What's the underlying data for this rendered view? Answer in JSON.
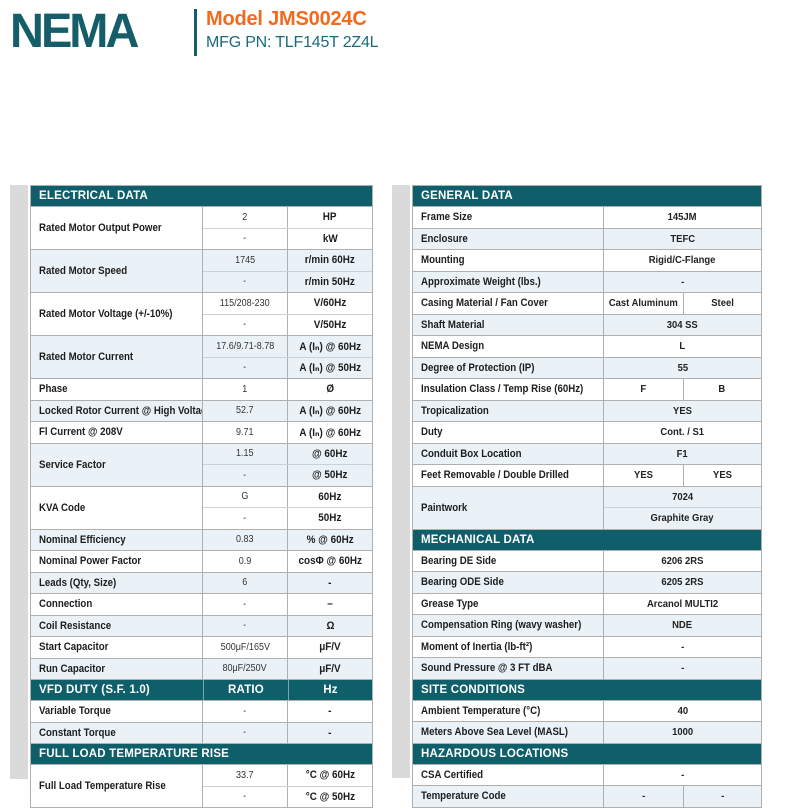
{
  "colors": {
    "teal": "#0E5F6A",
    "brand_teal": "#155E69",
    "orange": "#F26B1D",
    "row_stripe": "#EAF2F7",
    "border": "#AFAFAF",
    "edge_strip": "#DADADA"
  },
  "header": {
    "logo_text": "NEMA",
    "model_label": "Model JMS0024C",
    "mfg_pn": "MFG PN: TLF145T 2Z4L"
  },
  "left_table": {
    "sections": [
      {
        "header": {
          "label": "ELECTRICAL DATA"
        },
        "groups": [
          {
            "label": "Rated Motor Output Power",
            "rows": [
              [
                "2",
                "HP"
              ],
              [
                "-",
                "kW"
              ]
            ]
          },
          {
            "label": "Rated Motor Speed",
            "rows": [
              [
                "1745",
                "r/min 60Hz"
              ],
              [
                "-",
                "r/min 50Hz"
              ]
            ]
          },
          {
            "label": "Rated Motor Voltage (+/-10%)",
            "rows": [
              [
                "115/208-230",
                "V/60Hz"
              ],
              [
                "-",
                "V/50Hz"
              ]
            ]
          },
          {
            "label": "Rated Motor Current",
            "rows": [
              [
                "17.6/9.71-8.78",
                "A (Iₙ) @ 60Hz"
              ],
              [
                "-",
                "A (Iₙ) @ 50Hz"
              ]
            ]
          },
          {
            "label": "Phase",
            "rows": [
              [
                "1",
                "Ø"
              ]
            ]
          },
          {
            "label": "Locked Rotor Current @ High Voltage",
            "rows": [
              [
                "52.7",
                "A (Iₙ) @ 60Hz"
              ]
            ]
          },
          {
            "label": "Fl Current @ 208V",
            "rows": [
              [
                "9.71",
                "A (Iₙ) @ 60Hz"
              ]
            ]
          },
          {
            "label": "Service Factor",
            "rows": [
              [
                "1.15",
                "@ 60Hz"
              ],
              [
                "-",
                "@ 50Hz"
              ]
            ]
          },
          {
            "label": "KVA Code",
            "rows": [
              [
                "G",
                "60Hz"
              ],
              [
                "-",
                "50Hz"
              ]
            ]
          },
          {
            "label": "Nominal Efficiency",
            "rows": [
              [
                "0.83",
                "% @ 60Hz"
              ]
            ]
          },
          {
            "label": "Nominal Power Factor",
            "rows": [
              [
                "0.9",
                "cosΦ @ 60Hz"
              ]
            ]
          },
          {
            "label": "Leads (Qty, Size)",
            "rows": [
              [
                "6",
                "-"
              ]
            ]
          },
          {
            "label": "Connection",
            "rows": [
              [
                "-",
                "–"
              ]
            ]
          },
          {
            "label": "Coil Resistance",
            "rows": [
              [
                "-",
                "Ω"
              ]
            ]
          },
          {
            "label": "Start Capacitor",
            "rows": [
              [
                "500μF/165V",
                "μF/V"
              ]
            ]
          },
          {
            "label": "Run Capacitor",
            "rows": [
              [
                "80μF/250V",
                "μF/V"
              ]
            ]
          }
        ]
      },
      {
        "header": {
          "label": "VFD DUTY (S.F. 1.0)",
          "cols": [
            "RATIO",
            "Hz"
          ]
        },
        "groups": [
          {
            "label": "Variable Torque",
            "rows": [
              [
                "-",
                "-"
              ]
            ]
          },
          {
            "label": "Constant Torque",
            "rows": [
              [
                "-",
                "-"
              ]
            ]
          }
        ]
      },
      {
        "header": {
          "label": "FULL LOAD TEMPERATURE RISE"
        },
        "groups": [
          {
            "label": "Full Load Temperature Rise",
            "rows": [
              [
                "33.7",
                "°C @ 60Hz"
              ],
              [
                "-",
                "°C @ 50Hz"
              ]
            ]
          }
        ]
      }
    ]
  },
  "right_table": {
    "sections": [
      {
        "header": {
          "label": "GENERAL DATA"
        },
        "groups": [
          {
            "label": "Frame Size",
            "rows": [
              [
                "145JM"
              ]
            ]
          },
          {
            "label": "Enclosure",
            "rows": [
              [
                "TEFC"
              ]
            ]
          },
          {
            "label": "Mounting",
            "rows": [
              [
                "Rigid/C-Flange"
              ]
            ]
          },
          {
            "label": "Approximate Weight (lbs.)",
            "rows": [
              [
                "-"
              ]
            ]
          },
          {
            "label": "Casing Material / Fan Cover",
            "rows": [
              [
                "Cast Aluminum",
                "Steel"
              ]
            ]
          },
          {
            "label": "Shaft Material",
            "rows": [
              [
                "304 SS"
              ]
            ]
          },
          {
            "label": "NEMA Design",
            "rows": [
              [
                "L"
              ]
            ]
          },
          {
            "label": "Degree of Protection (IP)",
            "rows": [
              [
                "55"
              ]
            ]
          },
          {
            "label": "Insulation Class / Temp Rise (60Hz)",
            "rows": [
              [
                "F",
                "B"
              ]
            ]
          },
          {
            "label": "Tropicalization",
            "rows": [
              [
                "YES"
              ]
            ]
          },
          {
            "label": "Duty",
            "rows": [
              [
                "Cont. / S1"
              ]
            ]
          },
          {
            "label": "Conduit Box Location",
            "rows": [
              [
                "F1"
              ]
            ]
          },
          {
            "label": "Feet Removable / Double Drilled",
            "rows": [
              [
                "YES",
                "YES"
              ]
            ]
          },
          {
            "label": "Paintwork",
            "rows": [
              [
                "7024"
              ],
              [
                "Graphite Gray"
              ]
            ]
          }
        ]
      },
      {
        "header": {
          "label": "MECHANICAL DATA"
        },
        "groups": [
          {
            "label": "Bearing DE Side",
            "rows": [
              [
                "6206 2RS"
              ]
            ]
          },
          {
            "label": "Bearing ODE Side",
            "rows": [
              [
                "6205 2RS"
              ]
            ]
          },
          {
            "label": "Grease Type",
            "rows": [
              [
                "Arcanol MULTI2"
              ]
            ]
          },
          {
            "label": "Compensation Ring (wavy washer)",
            "rows": [
              [
                "NDE"
              ]
            ]
          },
          {
            "label": "Moment of Inertia (lb-ft²)",
            "rows": [
              [
                "-"
              ]
            ]
          },
          {
            "label": "Sound Pressure @ 3 FT dBA",
            "rows": [
              [
                "-"
              ]
            ]
          }
        ]
      },
      {
        "header": {
          "label": "SITE CONDITIONS"
        },
        "groups": [
          {
            "label": "Ambient Temperature (°C)",
            "rows": [
              [
                "40"
              ]
            ]
          },
          {
            "label": "Meters Above Sea Level (MASL)",
            "rows": [
              [
                "1000"
              ]
            ]
          }
        ]
      },
      {
        "header": {
          "label": "HAZARDOUS LOCATIONS"
        },
        "groups": [
          {
            "label": "CSA Certified",
            "rows": [
              [
                "-"
              ]
            ]
          },
          {
            "label": "Temperature Code",
            "rows": [
              [
                "-",
                "-"
              ]
            ]
          }
        ]
      }
    ]
  }
}
